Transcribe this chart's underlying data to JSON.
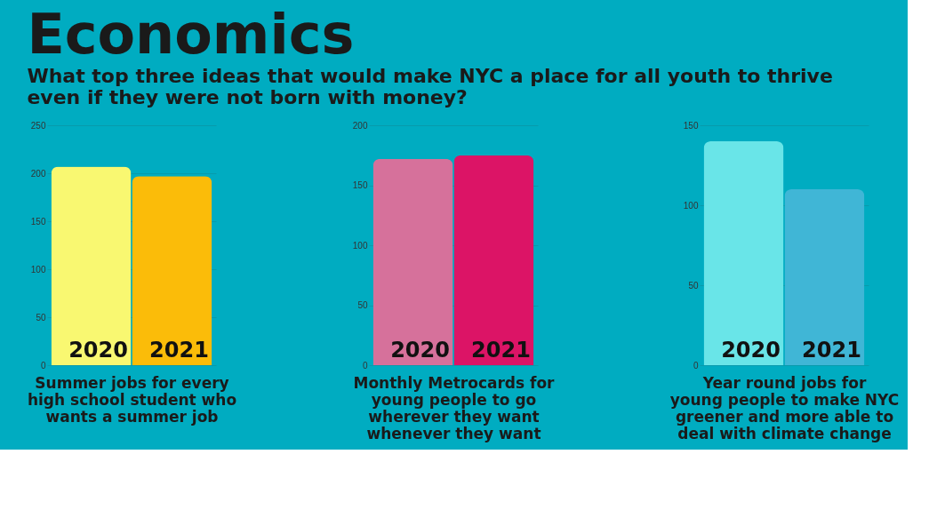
{
  "chart_data": [
    {
      "type": "bar",
      "title": "Economics",
      "subtitle": "What top three ideas that would make NYC a place for all youth to thrive even if they were not born with money?",
      "categories": [
        "2020",
        "2021"
      ],
      "values": [
        207,
        197
      ],
      "colors": [
        "#f9f871",
        "#fbbc09"
      ],
      "xlabel": "Summer jobs for every high school student who wants a  summer job",
      "ylim": [
        0,
        250
      ],
      "yticks": [
        0,
        50,
        100,
        150,
        200,
        250
      ],
      "grid": "y"
    },
    {
      "type": "bar",
      "categories": [
        "2020",
        "2021"
      ],
      "values": [
        172,
        175
      ],
      "colors": [
        "#d6719b",
        "#dc1466"
      ],
      "xlabel": "Monthly Metrocards for young people to go wherever they want whenever they want",
      "ylim": [
        0,
        200
      ],
      "yticks": [
        0,
        50,
        100,
        150,
        200
      ],
      "grid": "y"
    },
    {
      "type": "bar",
      "categories": [
        "2020",
        "2021"
      ],
      "values": [
        140,
        110
      ],
      "colors": [
        "#69e5e8",
        "#40b6d6"
      ],
      "xlabel": "Year round jobs for young people to make NYC greener and more able to deal with climate change",
      "ylim": [
        0,
        150
      ],
      "yticks": [
        0,
        50,
        100,
        150
      ],
      "grid": "y"
    }
  ]
}
